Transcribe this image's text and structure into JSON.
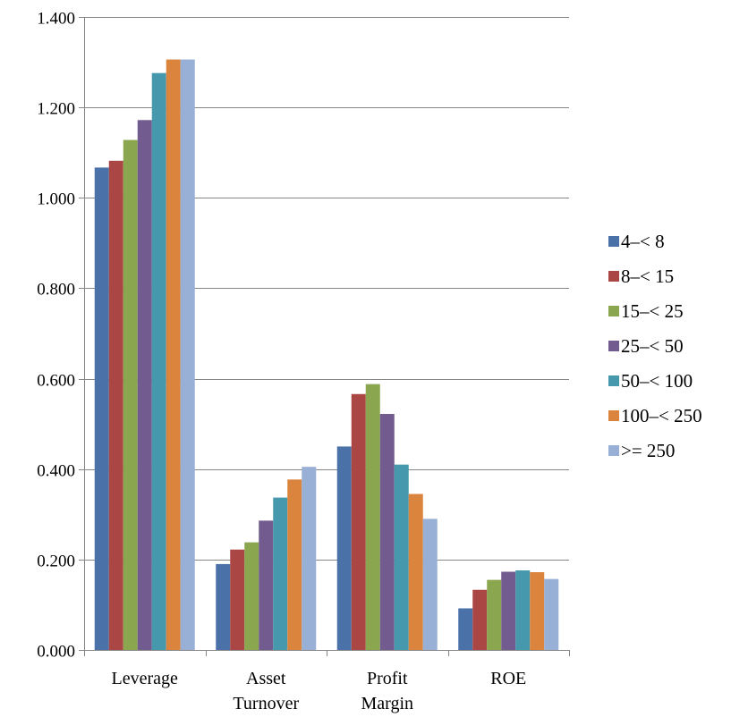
{
  "chart_data": {
    "type": "bar",
    "title": "",
    "xlabel": "",
    "ylabel": "",
    "ylim": [
      0,
      1.4
    ],
    "y_ticks": [
      "0.000",
      "0.200",
      "0.400",
      "0.600",
      "0.800",
      "1.000",
      "1.200",
      "1.400"
    ],
    "grid": "horizontal",
    "legend_position": "right",
    "categories": [
      [
        "Leverage"
      ],
      [
        "Asset",
        "Turnover"
      ],
      [
        "Profit",
        "Margin"
      ],
      [
        "ROE"
      ]
    ],
    "series": [
      {
        "name": "4–< 8",
        "color": "#4a71a8",
        "values": [
          1.067,
          0.19,
          0.45,
          0.092
        ]
      },
      {
        "name": "8–< 15",
        "color": "#aa4744",
        "values": [
          1.082,
          0.222,
          0.566,
          0.133
        ]
      },
      {
        "name": "15–< 25",
        "color": "#8aa64f",
        "values": [
          1.128,
          0.238,
          0.588,
          0.155
        ]
      },
      {
        "name": "25–< 50",
        "color": "#725b8e",
        "values": [
          1.172,
          0.286,
          0.522,
          0.173
        ]
      },
      {
        "name": "50–< 100",
        "color": "#4698ad",
        "values": [
          1.276,
          0.337,
          0.41,
          0.176
        ]
      },
      {
        "name": "100–< 250",
        "color": "#db843d",
        "values": [
          1.306,
          0.377,
          0.345,
          0.172
        ]
      },
      {
        "name": ">= 250",
        "color": "#98b0d6",
        "values": [
          1.306,
          0.405,
          0.29,
          0.157
        ]
      }
    ]
  }
}
